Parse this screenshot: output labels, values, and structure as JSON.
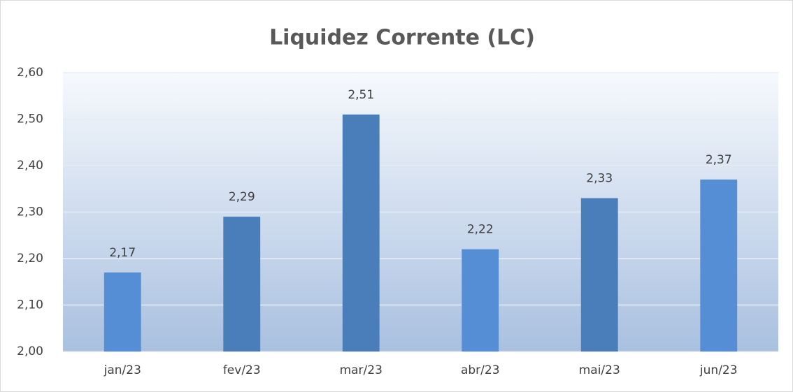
{
  "chart_data": {
    "type": "bar",
    "title": "Liquidez Corrente (LC)",
    "categories": [
      "jan/23",
      "fev/23",
      "mar/23",
      "abr/23",
      "mai/23",
      "jun/23"
    ],
    "values": [
      2.17,
      2.29,
      2.51,
      2.22,
      2.33,
      2.37
    ],
    "value_labels": [
      "2,17",
      "2,29",
      "2,51",
      "2,22",
      "2,33",
      "2,37"
    ],
    "colors": [
      "#558ed5",
      "#4a7ebb",
      "#4a7ebb",
      "#558ed5",
      "#4a7ebb",
      "#558ed5"
    ],
    "ylim": [
      2.0,
      2.6
    ],
    "yticks": [
      {
        "value": 2.0,
        "label": "2,00"
      },
      {
        "value": 2.1,
        "label": "2,10"
      },
      {
        "value": 2.2,
        "label": "2,20"
      },
      {
        "value": 2.3,
        "label": "2,30"
      },
      {
        "value": 2.4,
        "label": "2,40"
      },
      {
        "value": 2.5,
        "label": "2,50"
      },
      {
        "value": 2.6,
        "label": "2,60"
      }
    ],
    "grid": true
  }
}
